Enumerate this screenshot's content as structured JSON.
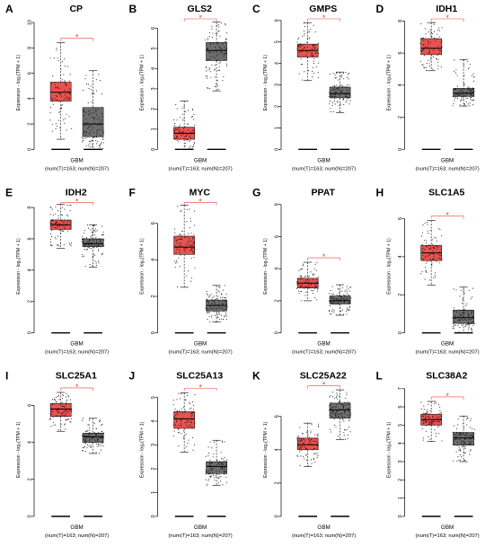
{
  "figure": {
    "common": {
      "ylabel": "Expression - log₂(TPM + 1)",
      "xlabel": "GBM",
      "counts": "(num(T)=163; num(N)=207)",
      "significance": "*"
    },
    "colors": {
      "tumor": "#E8524F",
      "normal": "#6E6E6E",
      "sig": "#E8433E",
      "text": "#000000"
    }
  },
  "chart_data": [
    {
      "type": "box",
      "letter": "A",
      "title": "CP",
      "ylim": [
        0,
        10.5
      ],
      "yticks": [
        0,
        2,
        4,
        6,
        8,
        10
      ],
      "series": [
        {
          "name": "T",
          "n": 163,
          "stats": {
            "q1": 3.8,
            "median": 4.5,
            "q3": 5.3,
            "wlo": 0.8,
            "whi": 8.4
          }
        },
        {
          "name": "N",
          "n": 207,
          "stats": {
            "q1": 1.0,
            "median": 2.0,
            "q3": 3.3,
            "wlo": 0.0,
            "whi": 6.2
          }
        }
      ]
    },
    {
      "type": "box",
      "letter": "B",
      "title": "GLS2",
      "ylim": [
        0,
        6.6
      ],
      "yticks": [
        0,
        1,
        2,
        3,
        4,
        5,
        6
      ],
      "series": [
        {
          "name": "T",
          "n": 163,
          "stats": {
            "q1": 0.5,
            "median": 0.8,
            "q3": 1.1,
            "wlo": 0.0,
            "whi": 2.4
          }
        },
        {
          "name": "N",
          "n": 207,
          "stats": {
            "q1": 4.4,
            "median": 4.9,
            "q3": 5.3,
            "wlo": 2.9,
            "whi": 6.3
          }
        }
      ]
    },
    {
      "type": "box",
      "letter": "C",
      "title": "GMPS",
      "ylim": [
        0,
        6.2
      ],
      "yticks": [
        0,
        1,
        2,
        3,
        4,
        5,
        6
      ],
      "series": [
        {
          "name": "T",
          "n": 163,
          "stats": {
            "q1": 4.3,
            "median": 4.6,
            "q3": 4.9,
            "wlo": 3.2,
            "whi": 5.9
          }
        },
        {
          "name": "N",
          "n": 207,
          "stats": {
            "q1": 2.4,
            "median": 2.6,
            "q3": 2.9,
            "wlo": 1.7,
            "whi": 3.6
          }
        }
      ]
    },
    {
      "type": "box",
      "letter": "D",
      "title": "IDH1",
      "ylim": [
        0,
        8.3
      ],
      "yticks": [
        0,
        2,
        4,
        6,
        8
      ],
      "series": [
        {
          "name": "T",
          "n": 163,
          "stats": {
            "q1": 5.9,
            "median": 6.3,
            "q3": 6.9,
            "wlo": 4.9,
            "whi": 7.9
          }
        },
        {
          "name": "N",
          "n": 207,
          "stats": {
            "q1": 3.3,
            "median": 3.5,
            "q3": 3.8,
            "wlo": 2.7,
            "whi": 5.6
          }
        }
      ]
    },
    {
      "type": "box",
      "letter": "E",
      "title": "IDH2",
      "ylim": [
        0,
        8.5
      ],
      "yticks": [
        0,
        2,
        4,
        6,
        8
      ],
      "series": [
        {
          "name": "T",
          "n": 163,
          "stats": {
            "q1": 6.6,
            "median": 6.9,
            "q3": 7.2,
            "wlo": 5.4,
            "whi": 8.2
          }
        },
        {
          "name": "N",
          "n": 207,
          "stats": {
            "q1": 5.5,
            "median": 5.7,
            "q3": 6.0,
            "wlo": 4.2,
            "whi": 6.9
          }
        }
      ]
    },
    {
      "type": "box",
      "letter": "F",
      "title": "MYC",
      "ylim": [
        0,
        7.3
      ],
      "yticks": [
        0,
        2,
        4,
        6
      ],
      "series": [
        {
          "name": "T",
          "n": 163,
          "stats": {
            "q1": 4.3,
            "median": 4.7,
            "q3": 5.3,
            "wlo": 2.5,
            "whi": 7.0
          }
        },
        {
          "name": "N",
          "n": 207,
          "stats": {
            "q1": 1.2,
            "median": 1.5,
            "q3": 1.8,
            "wlo": 0.6,
            "whi": 2.6
          }
        }
      ]
    },
    {
      "type": "box",
      "letter": "G",
      "title": "PPAT",
      "ylim": [
        0,
        8.3
      ],
      "yticks": [
        0,
        2,
        4,
        6,
        8
      ],
      "series": [
        {
          "name": "T",
          "n": 163,
          "stats": {
            "q1": 2.8,
            "median": 3.1,
            "q3": 3.4,
            "wlo": 2.0,
            "whi": 4.4
          }
        },
        {
          "name": "N",
          "n": 207,
          "stats": {
            "q1": 1.8,
            "median": 2.0,
            "q3": 2.3,
            "wlo": 1.1,
            "whi": 3.0
          }
        }
      ]
    },
    {
      "type": "box",
      "letter": "H",
      "title": "SLC1A5",
      "ylim": [
        0,
        7.0
      ],
      "yticks": [
        0,
        2,
        4,
        6
      ],
      "series": [
        {
          "name": "T",
          "n": 163,
          "stats": {
            "q1": 3.8,
            "median": 4.2,
            "q3": 4.6,
            "wlo": 2.5,
            "whi": 5.9
          }
        },
        {
          "name": "N",
          "n": 207,
          "stats": {
            "q1": 0.5,
            "median": 0.8,
            "q3": 1.2,
            "wlo": 0.0,
            "whi": 2.4
          }
        }
      ]
    },
    {
      "type": "box",
      "letter": "I",
      "title": "SLC25A1",
      "ylim": [
        0,
        7.2
      ],
      "yticks": [
        0,
        2,
        4,
        6
      ],
      "series": [
        {
          "name": "T",
          "n": 163,
          "stats": {
            "q1": 5.4,
            "median": 5.8,
            "q3": 6.1,
            "wlo": 4.6,
            "whi": 6.7
          }
        },
        {
          "name": "N",
          "n": 207,
          "stats": {
            "q1": 4.0,
            "median": 4.3,
            "q3": 4.5,
            "wlo": 3.4,
            "whi": 5.3
          }
        }
      ]
    },
    {
      "type": "box",
      "letter": "J",
      "title": "SLC25A13",
      "ylim": [
        0,
        5.6
      ],
      "yticks": [
        0,
        1,
        2,
        3,
        4,
        5
      ],
      "series": [
        {
          "name": "T",
          "n": 163,
          "stats": {
            "q1": 3.7,
            "median": 4.1,
            "q3": 4.4,
            "wlo": 2.7,
            "whi": 5.2
          }
        },
        {
          "name": "N",
          "n": 207,
          "stats": {
            "q1": 1.8,
            "median": 2.1,
            "q3": 2.3,
            "wlo": 1.3,
            "whi": 3.2
          }
        }
      ]
    },
    {
      "type": "box",
      "letter": "K",
      "title": "SLC25A22",
      "ylim": [
        0,
        8.0
      ],
      "yticks": [
        0,
        2,
        4,
        6
      ],
      "series": [
        {
          "name": "T",
          "n": 163,
          "stats": {
            "q1": 4.0,
            "median": 4.3,
            "q3": 4.7,
            "wlo": 3.0,
            "whi": 5.6
          }
        },
        {
          "name": "N",
          "n": 207,
          "stats": {
            "q1": 5.9,
            "median": 6.4,
            "q3": 6.8,
            "wlo": 4.6,
            "whi": 7.6
          }
        }
      ]
    },
    {
      "type": "box",
      "letter": "L",
      "title": "SLC38A2",
      "ylim": [
        0,
        7.3
      ],
      "yticks": [
        0,
        1,
        2,
        3,
        4,
        5,
        6,
        7
      ],
      "series": [
        {
          "name": "T",
          "n": 163,
          "stats": {
            "q1": 5.0,
            "median": 5.3,
            "q3": 5.6,
            "wlo": 4.1,
            "whi": 6.3
          }
        },
        {
          "name": "N",
          "n": 207,
          "stats": {
            "q1": 3.9,
            "median": 4.3,
            "q3": 4.6,
            "wlo": 3.0,
            "whi": 5.5
          }
        }
      ]
    }
  ]
}
